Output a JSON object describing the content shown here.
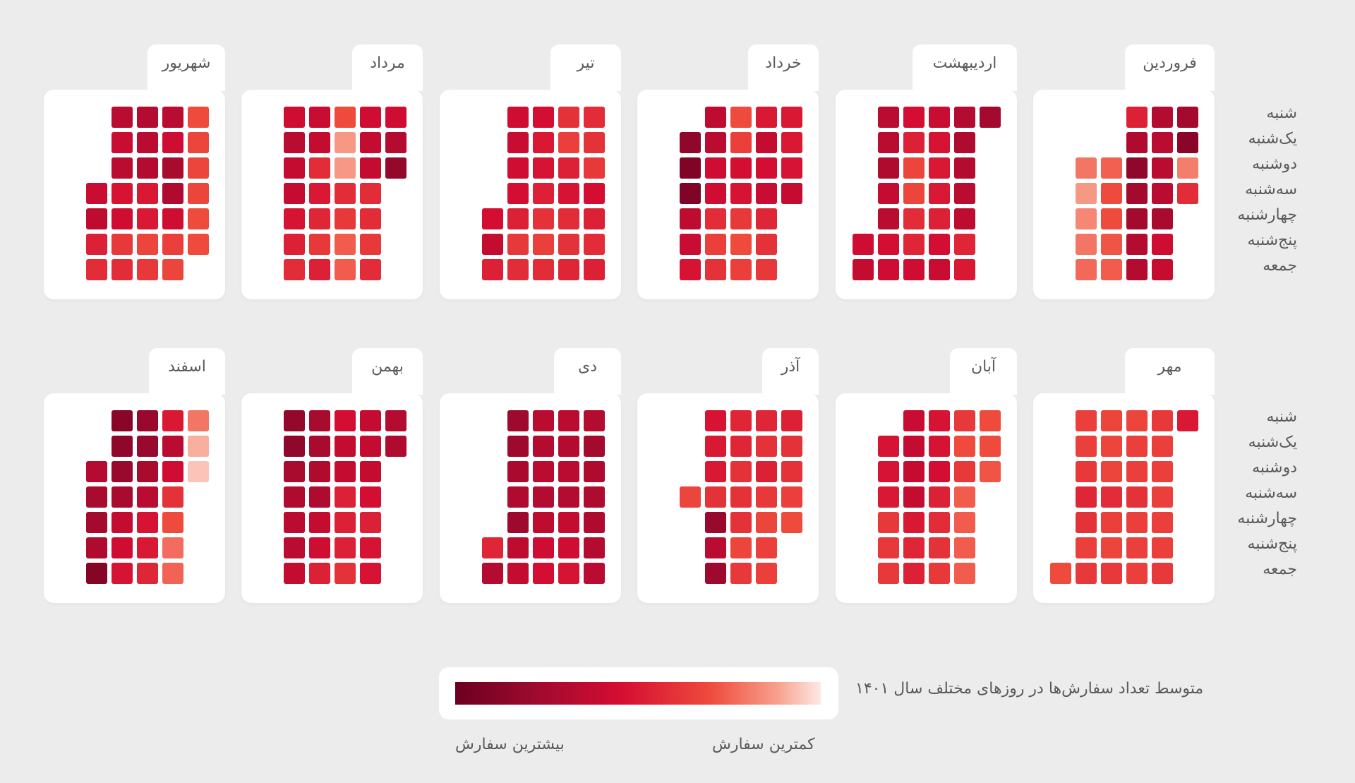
{
  "chart_data": {
    "type": "heatmap",
    "title": "متوسط تعداد سفارش‌ها در روزهای مختلف سال ۱۴۰۱",
    "days": [
      "شنبه",
      "یک‌شنبه",
      "دوشنبه",
      "سه‌شنبه",
      "چهارشنبه",
      "پنج‌شنبه",
      "جمعه"
    ],
    "legend": {
      "min_label": "کمترین سفارش",
      "max_label": "بیشترین سفارش",
      "scale": [
        "#fde9e4",
        "#f7a08c",
        "#ef4b3d",
        "#d40d32",
        "#9e0a2e",
        "#6b0020"
      ]
    },
    "value_scale": "0 = کمترین سفارش, 1 = بیشترین سفارش (normalized)",
    "months": [
      {
        "name": "فروردین",
        "weeks": [
          [
            0.78,
            0.88,
            0.28,
            0.5,
            null,
            null,
            null
          ],
          [
            0.72,
            0.7,
            0.7,
            0.7,
            0.76,
            0.62,
            0.65
          ],
          [
            0.54,
            0.74,
            0.86,
            0.78,
            0.78,
            0.72,
            0.72
          ],
          [
            null,
            null,
            0.35,
            0.4,
            0.4,
            0.38,
            0.36
          ],
          [
            null,
            null,
            0.3,
            0.22,
            0.26,
            0.3,
            0.33
          ]
        ]
      },
      {
        "name": "اردیبهشت",
        "weeks": [
          [
            0.78,
            null,
            null,
            null,
            null,
            null,
            null
          ],
          [
            0.72,
            0.74,
            0.72,
            0.7,
            0.68,
            0.52,
            0.56
          ],
          [
            0.64,
            0.58,
            0.56,
            0.56,
            0.54,
            0.6,
            0.64
          ],
          [
            0.6,
            0.54,
            0.42,
            0.42,
            0.5,
            0.52,
            0.62
          ],
          [
            0.7,
            0.7,
            0.74,
            0.66,
            0.7,
            0.6,
            0.62
          ],
          [
            null,
            null,
            null,
            null,
            null,
            0.62,
            0.66
          ]
        ]
      },
      {
        "name": "خرداد",
        "weeks": [
          [
            0.56,
            0.56,
            0.58,
            0.66,
            null,
            null,
            null
          ],
          [
            0.56,
            0.66,
            0.6,
            0.64,
            0.52,
            0.48,
            0.46
          ],
          [
            0.4,
            0.44,
            0.6,
            0.58,
            0.46,
            0.4,
            0.44
          ],
          [
            0.68,
            0.7,
            0.62,
            0.62,
            0.5,
            0.44,
            0.48
          ],
          [
            null,
            0.86,
            0.92,
            0.92,
            0.68,
            0.64,
            0.58
          ]
        ]
      },
      {
        "name": "تیر",
        "weeks": [
          [
            0.5,
            0.48,
            0.46,
            0.6,
            0.54,
            0.5,
            0.54
          ],
          [
            0.48,
            0.44,
            0.54,
            0.58,
            0.5,
            0.48,
            0.52
          ],
          [
            0.6,
            0.56,
            0.58,
            0.54,
            0.48,
            0.44,
            0.5
          ],
          [
            0.62,
            0.64,
            0.62,
            0.6,
            0.54,
            0.46,
            0.5
          ],
          [
            null,
            null,
            null,
            null,
            0.6,
            0.66,
            0.54
          ]
        ]
      },
      {
        "name": "مرداد",
        "weeks": [
          [
            0.62,
            0.72,
            0.84,
            null,
            null,
            null,
            null
          ],
          [
            0.62,
            0.66,
            0.66,
            0.5,
            0.5,
            0.46,
            0.5
          ],
          [
            0.4,
            0.22,
            0.22,
            0.5,
            0.46,
            0.36,
            0.36
          ],
          [
            0.64,
            0.66,
            0.5,
            0.56,
            0.52,
            0.46,
            0.54
          ],
          [
            0.62,
            0.7,
            0.66,
            0.66,
            0.58,
            0.54,
            0.5
          ]
        ]
      },
      {
        "name": "شهریور",
        "weeks": [
          [
            0.4,
            0.42,
            0.42,
            0.42,
            0.4,
            0.4,
            null
          ],
          [
            0.7,
            0.62,
            0.76,
            0.74,
            0.62,
            0.44,
            0.42
          ],
          [
            0.72,
            0.7,
            0.72,
            0.56,
            0.56,
            0.42,
            0.46
          ],
          [
            0.7,
            0.64,
            0.7,
            0.58,
            0.62,
            0.46,
            0.5
          ],
          [
            null,
            null,
            null,
            0.64,
            0.68,
            0.54,
            0.5
          ]
        ]
      },
      {
        "name": "مهر",
        "weeks": [
          [
            0.56,
            null,
            null,
            null,
            null,
            null,
            null
          ],
          [
            0.46,
            0.44,
            0.44,
            0.44,
            0.44,
            0.44,
            0.46
          ],
          [
            0.42,
            0.44,
            0.44,
            0.48,
            0.44,
            0.44,
            0.44
          ],
          [
            0.42,
            0.42,
            0.42,
            0.5,
            0.44,
            0.42,
            0.46
          ],
          [
            0.44,
            0.44,
            0.46,
            0.52,
            0.48,
            0.44,
            0.46
          ],
          [
            null,
            null,
            null,
            null,
            null,
            null,
            0.4
          ]
        ]
      },
      {
        "name": "آبان",
        "weeks": [
          [
            0.4,
            0.4,
            0.38,
            null,
            null,
            null,
            null
          ],
          [
            0.46,
            0.4,
            0.46,
            0.36,
            0.36,
            0.36,
            0.36
          ],
          [
            0.58,
            0.58,
            0.6,
            0.54,
            0.5,
            0.48,
            0.46
          ],
          [
            0.64,
            0.66,
            0.66,
            0.66,
            0.56,
            0.52,
            0.54
          ],
          [
            null,
            0.58,
            0.58,
            0.56,
            0.46,
            0.46,
            0.46
          ]
        ]
      },
      {
        "name": "آذر",
        "weeks": [
          [
            0.54,
            0.48,
            0.48,
            0.44,
            0.4,
            null,
            null
          ],
          [
            0.52,
            0.48,
            0.54,
            0.46,
            0.42,
            0.44,
            0.44
          ],
          [
            0.52,
            0.52,
            0.48,
            0.48,
            0.48,
            0.42,
            0.46
          ],
          [
            0.58,
            0.56,
            0.56,
            0.48,
            0.82,
            0.7,
            0.8
          ],
          [
            null,
            null,
            null,
            0.42,
            null,
            null,
            null
          ]
        ]
      },
      {
        "name": "دی",
        "weeks": [
          [
            0.72,
            0.78,
            0.74,
            0.74,
            0.74,
            0.72,
            0.7
          ],
          [
            0.7,
            0.72,
            0.7,
            0.72,
            0.66,
            0.62,
            0.58
          ],
          [
            0.7,
            0.72,
            0.7,
            0.72,
            0.68,
            0.62,
            0.6
          ],
          [
            0.8,
            0.8,
            0.76,
            0.74,
            0.8,
            0.68,
            0.66
          ],
          [
            null,
            null,
            null,
            null,
            null,
            0.52,
            0.72
          ]
        ]
      },
      {
        "name": "بهمن",
        "weeks": [
          [
            0.72,
            0.74,
            null,
            null,
            null,
            null,
            null
          ],
          [
            0.66,
            0.66,
            0.66,
            0.6,
            0.54,
            0.58,
            0.58
          ],
          [
            0.6,
            0.66,
            0.66,
            0.54,
            0.54,
            0.54,
            0.48
          ],
          [
            0.76,
            0.76,
            0.74,
            0.74,
            0.66,
            0.62,
            0.54
          ],
          [
            0.84,
            0.86,
            0.76,
            0.74,
            0.7,
            0.7,
            0.66
          ]
        ]
      },
      {
        "name": "اسفند",
        "weeks": [
          [
            0.3,
            0.16,
            0.1,
            null,
            null,
            null,
            null
          ],
          [
            0.56,
            0.7,
            0.62,
            0.48,
            0.4,
            0.32,
            0.34
          ],
          [
            0.82,
            0.82,
            0.76,
            0.7,
            0.58,
            0.56,
            0.52
          ],
          [
            0.88,
            0.86,
            0.82,
            0.76,
            0.66,
            0.62,
            0.58
          ],
          [
            null,
            null,
            0.72,
            0.76,
            0.78,
            0.74,
            0.9
          ]
        ]
      }
    ]
  }
}
